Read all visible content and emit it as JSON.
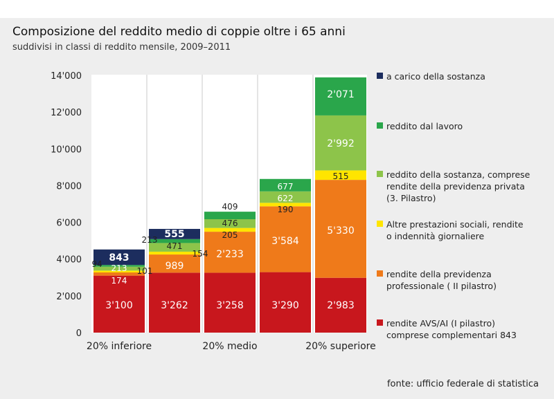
{
  "title": "Composizione del reddito medio di coppie oltre i 65 anni",
  "subtitle": "suddivisi in classi di reddito mensile, 2009–2011",
  "source": "fonte: ufficio federale di statistica",
  "chart_data": {
    "type": "bar",
    "stacked": true,
    "categories": [
      "20% inferiore",
      "",
      "20% medio",
      "",
      "20% superiore"
    ],
    "ylim": [
      0,
      14000
    ],
    "yticks": [
      0,
      2000,
      4000,
      6000,
      8000,
      10000,
      12000,
      14000
    ],
    "ytick_labels": [
      "0",
      "2'000",
      "4'000",
      "6'000",
      "8'000",
      "10'000",
      "12'000",
      "14'000"
    ],
    "series": [
      {
        "name": "rendite AVS/AI (I pilastro)\ncomprese complementari 843",
        "color": "#c8171d",
        "values": [
          3100,
          3262,
          3258,
          3290,
          2983
        ],
        "labels": [
          "3'100",
          "3'262",
          "3'258",
          "3'290",
          "2'983"
        ]
      },
      {
        "name": "rendite della previdenza\nprofessionale ( II pilastro)",
        "color": "#ef7a1a",
        "values": [
          174,
          989,
          2233,
          3584,
          5330
        ],
        "labels": [
          "174",
          "989",
          "2'233",
          "3'584",
          "5'330"
        ]
      },
      {
        "name": "Altre prestazioni sociali, rendite\no indennità giornaliere",
        "color": "#ffe500",
        "values": [
          101,
          154,
          205,
          190,
          515
        ],
        "labels": [
          "101",
          "154",
          "205",
          "190",
          "515"
        ]
      },
      {
        "name": "reddito della sostanza, comprese\nrendite della previdenza privata\n(3. Pilastro)",
        "color": "#8dc44a",
        "values": [
          213,
          471,
          476,
          622,
          2992
        ],
        "labels": [
          "213",
          "471",
          "476",
          "622",
          "2'992"
        ]
      },
      {
        "name": "reddito dal lavoro",
        "color": "#2aa64b",
        "values": [
          94,
          213,
          409,
          677,
          2071
        ],
        "labels": [
          "94",
          "213",
          "409",
          "677",
          "2'071"
        ]
      },
      {
        "name": "a carico della sostanza",
        "color": "#1c2d5e",
        "values": [
          843,
          555,
          0,
          0,
          0
        ],
        "labels": [
          "843",
          "555",
          "",
          "",
          ""
        ]
      }
    ]
  }
}
